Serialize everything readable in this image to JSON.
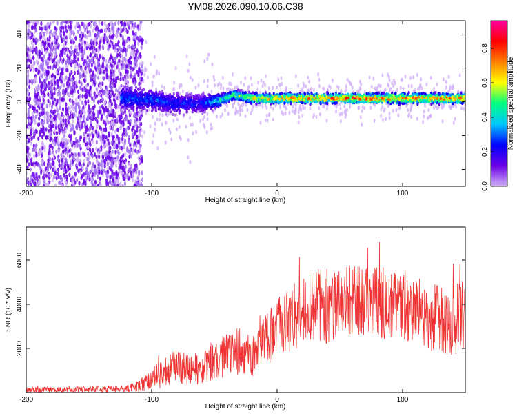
{
  "title": "YM08.2026.090.10.06.C38",
  "colors": {
    "snr_line": "#ee3333",
    "axis": "#000000",
    "point_dark": "#6a00e8",
    "point_light": "#d2b2f7",
    "band": "#20d8b8",
    "band_core": "#ff2a2a"
  },
  "chart_data": [
    {
      "id": "spectrogram",
      "type": "heatmap",
      "xlabel": "Height of straight line (km)",
      "ylabel": "Frequency (Hz)",
      "xlim": [
        -200,
        150
      ],
      "ylim": [
        -50,
        48
      ],
      "xticks": [
        -200,
        -100,
        0,
        100
      ],
      "yticks": [
        -40,
        -20,
        0,
        20,
        40
      ],
      "colorbar": {
        "label": "Normalized spectral amplitude",
        "range": [
          0,
          0.96
        ],
        "ticks": [
          "0.0",
          "0.2",
          "0.4",
          "0.6",
          "0.8"
        ],
        "tick_values": [
          0.0,
          0.2,
          0.4,
          0.6,
          0.8
        ],
        "stops": [
          "#d2b2f7",
          "#6a00e8",
          "#0000ff",
          "#00c8ff",
          "#00ff80",
          "#ffff00",
          "#ff8000",
          "#ff0000",
          "#ff00a0"
        ]
      },
      "band_profile": [
        {
          "x": -120,
          "center": 2,
          "halfwidth": 9,
          "peak": 0.35
        },
        {
          "x": -100,
          "center": 1,
          "halfwidth": 8,
          "peak": 0.35
        },
        {
          "x": -80,
          "center": -1,
          "halfwidth": 8,
          "peak": 0.3
        },
        {
          "x": -60,
          "center": -1,
          "halfwidth": 7,
          "peak": 0.3
        },
        {
          "x": -45,
          "center": 1,
          "halfwidth": 5,
          "peak": 0.55
        },
        {
          "x": -35,
          "center": 4,
          "halfwidth": 4,
          "peak": 0.6
        },
        {
          "x": -20,
          "center": 2,
          "halfwidth": 4,
          "peak": 0.75
        },
        {
          "x": 0,
          "center": 2,
          "halfwidth": 4,
          "peak": 0.85
        },
        {
          "x": 50,
          "center": 2,
          "halfwidth": 4,
          "peak": 0.9
        },
        {
          "x": 100,
          "center": 2,
          "halfwidth": 4,
          "peak": 0.9
        },
        {
          "x": 150,
          "center": 2,
          "halfwidth": 4,
          "peak": 0.9
        }
      ],
      "noise_region_x": [
        -200,
        -110
      ]
    },
    {
      "id": "snr",
      "type": "line",
      "xlabel": "Height of straight line (km)",
      "ylabel": "SNR (10 * v/v)",
      "xlim": [
        -200,
        150
      ],
      "ylim": [
        0,
        7500
      ],
      "xticks": [
        -200,
        -100,
        0,
        100
      ],
      "yticks": [
        2000,
        4000,
        6000
      ],
      "series": [
        {
          "name": "SNR",
          "envelope": {
            "x": [
              -200,
              -120,
              -110,
              -100,
              -90,
              -80,
              -70,
              -60,
              -50,
              -40,
              -30,
              -20,
              -10,
              0,
              10,
              20,
              30,
              40,
              50,
              60,
              70,
              80,
              90,
              100,
              110,
              120,
              130,
              140,
              150
            ],
            "mid": [
              120,
              150,
              300,
              600,
              900,
              1200,
              1000,
              1100,
              1500,
              1700,
              1900,
              1600,
              2400,
              2900,
              3300,
              3700,
              4000,
              3900,
              4000,
              4200,
              4000,
              4100,
              4000,
              3900,
              3700,
              3500,
              3300,
              3200,
              3500
            ],
            "amp": [
              130,
              160,
              300,
              500,
              700,
              800,
              700,
              800,
              900,
              1000,
              1100,
              900,
              1200,
              1400,
              1500,
              1600,
              1600,
              1700,
              1600,
              1700,
              1600,
              1700,
              1600,
              1500,
              1500,
              1600,
              1500,
              1700,
              1600
            ]
          }
        }
      ]
    }
  ]
}
